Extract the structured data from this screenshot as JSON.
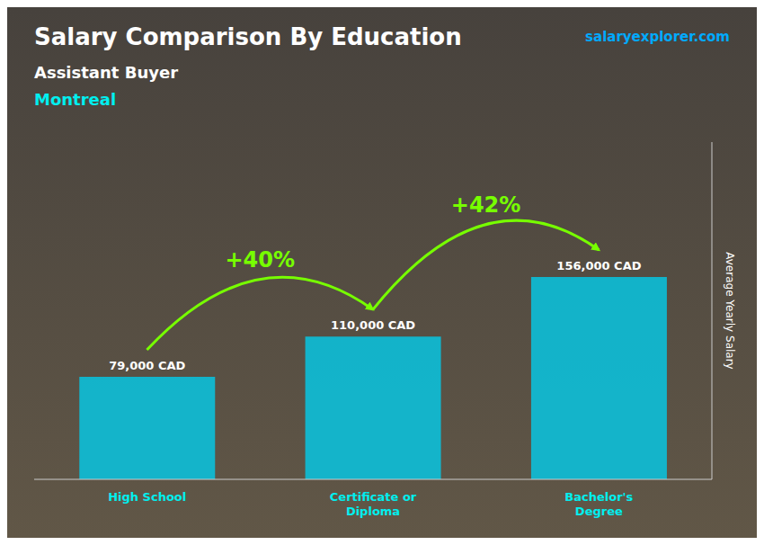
{
  "chart_data": {
    "type": "bar",
    "title": "Salary Comparison By Education",
    "subtitle": [
      "Assistant Buyer",
      "Montreal"
    ],
    "ylabel": "Average Yearly Salary",
    "categories": [
      "High School",
      "Certificate or\nDiploma",
      "Bachelor's\nDegree"
    ],
    "values": [
      79000,
      110000,
      156000
    ],
    "value_labels": [
      "79,000 CAD",
      "110,000 CAD",
      "156,000 CAD"
    ],
    "data_labels": true,
    "color": "#00CFEF",
    "ylim": [
      0,
      260000
    ],
    "tick_labels": "x",
    "grid": false,
    "annotations": [
      "+40%",
      "+42%",
      "salaryexplorer.com"
    ]
  }
}
